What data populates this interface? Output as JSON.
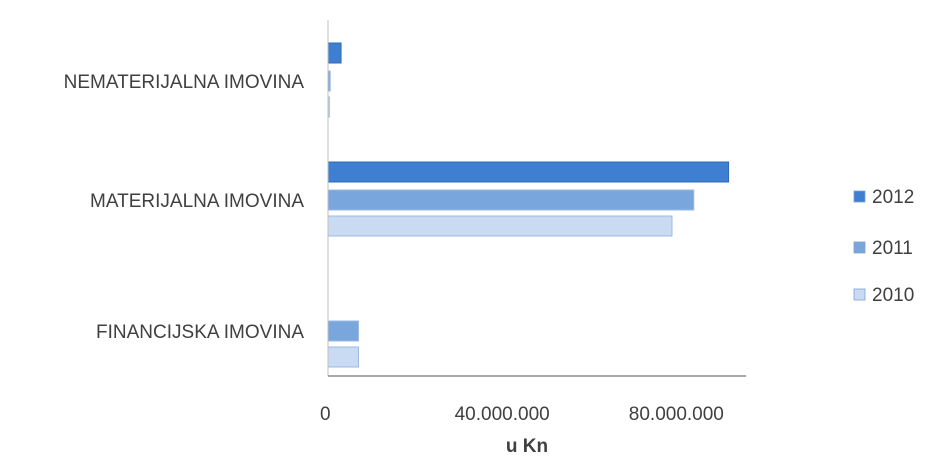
{
  "chart_data": {
    "type": "bar",
    "orientation": "horizontal",
    "categories": [
      "FINANCIJSKA IMOVINA",
      "MATERIJALNA IMOVINA",
      "NEMATERIJALNA IMOVINA"
    ],
    "series": [
      {
        "name": "2012",
        "values": [
          0,
          92000000,
          3000000
        ],
        "color": "#3e7fd1"
      },
      {
        "name": "2011",
        "values": [
          7000000,
          84000000,
          500000
        ],
        "color": "#7aa6de"
      },
      {
        "name": "2010",
        "values": [
          7000000,
          79000000,
          300000
        ],
        "color": "#c9dbf2"
      }
    ],
    "xlabel": "u Kn",
    "ylabel": "",
    "xlim": [
      0,
      96000000
    ],
    "ticks": [
      0,
      40000000,
      80000000
    ],
    "tick_labels": [
      "0",
      "40.000.000",
      "80.000.000"
    ],
    "grid": false,
    "legend_position": "right"
  }
}
